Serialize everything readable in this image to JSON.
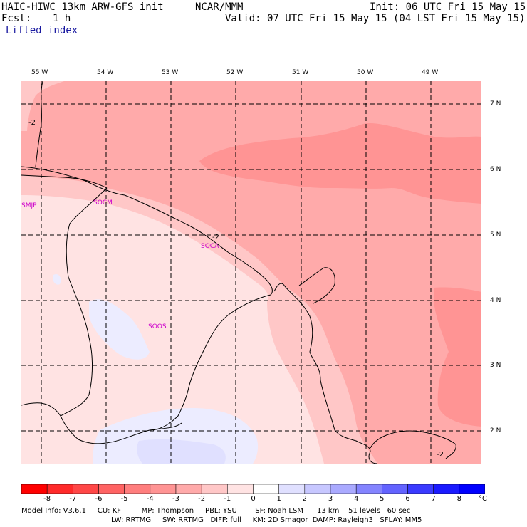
{
  "header": {
    "model": "HAIC-HIWC 13km ARW-GFS init",
    "org": "NCAR/MMM",
    "init": "Init: 06 UTC Fri 15 May 15",
    "fcst_label": "Fcst:",
    "fcst_value": "1 h",
    "valid": "Valid: 07 UTC Fri 15 May 15 (04 LST Fri 15 May 15)",
    "field": "Lifted index"
  },
  "map": {
    "lon_labels": [
      "55 W",
      "54 W",
      "53 W",
      "52 W",
      "51 W",
      "50 W",
      "49 W"
    ],
    "lat_labels": [
      "7 N",
      "6 N",
      "5 N",
      "4 N",
      "3 N",
      "2 N"
    ],
    "stations": [
      "SMJP",
      "SOCM",
      "SOCA",
      "SOOS"
    ],
    "contour_labels": [
      "-2",
      "-2",
      "-2"
    ]
  },
  "colorbar": {
    "ticks": [
      "-8",
      "-7",
      "-6",
      "-5",
      "-4",
      "-3",
      "-2",
      "-1",
      "0",
      "1",
      "2",
      "3",
      "4",
      "5",
      "6",
      "7",
      "8"
    ],
    "unit": "°C",
    "colors": [
      "#ff0000",
      "#ff2a2a",
      "#ff4747",
      "#ff6363",
      "#ff7e7e",
      "#ff9494",
      "#ffaaaa",
      "#ffc7c7",
      "#ffe3e3",
      "#ffffff",
      "#e0e0ff",
      "#c7c7ff",
      "#aaaaff",
      "#8484ff",
      "#6363ff",
      "#3a3aff",
      "#1a1aff",
      "#0000ff"
    ]
  },
  "footer": {
    "line1": "Model Info: V3.6.1     CU: KF         MP: Thompson     PBL: YSU        SF: Noah LSM      13 km    51 levels   60 sec",
    "line2": "LW: RRTMG     SW: RRTMG   DIFF: full     KM: 2D Smagor  DAMP: Rayleigh3   SFLAY: MM5"
  }
}
